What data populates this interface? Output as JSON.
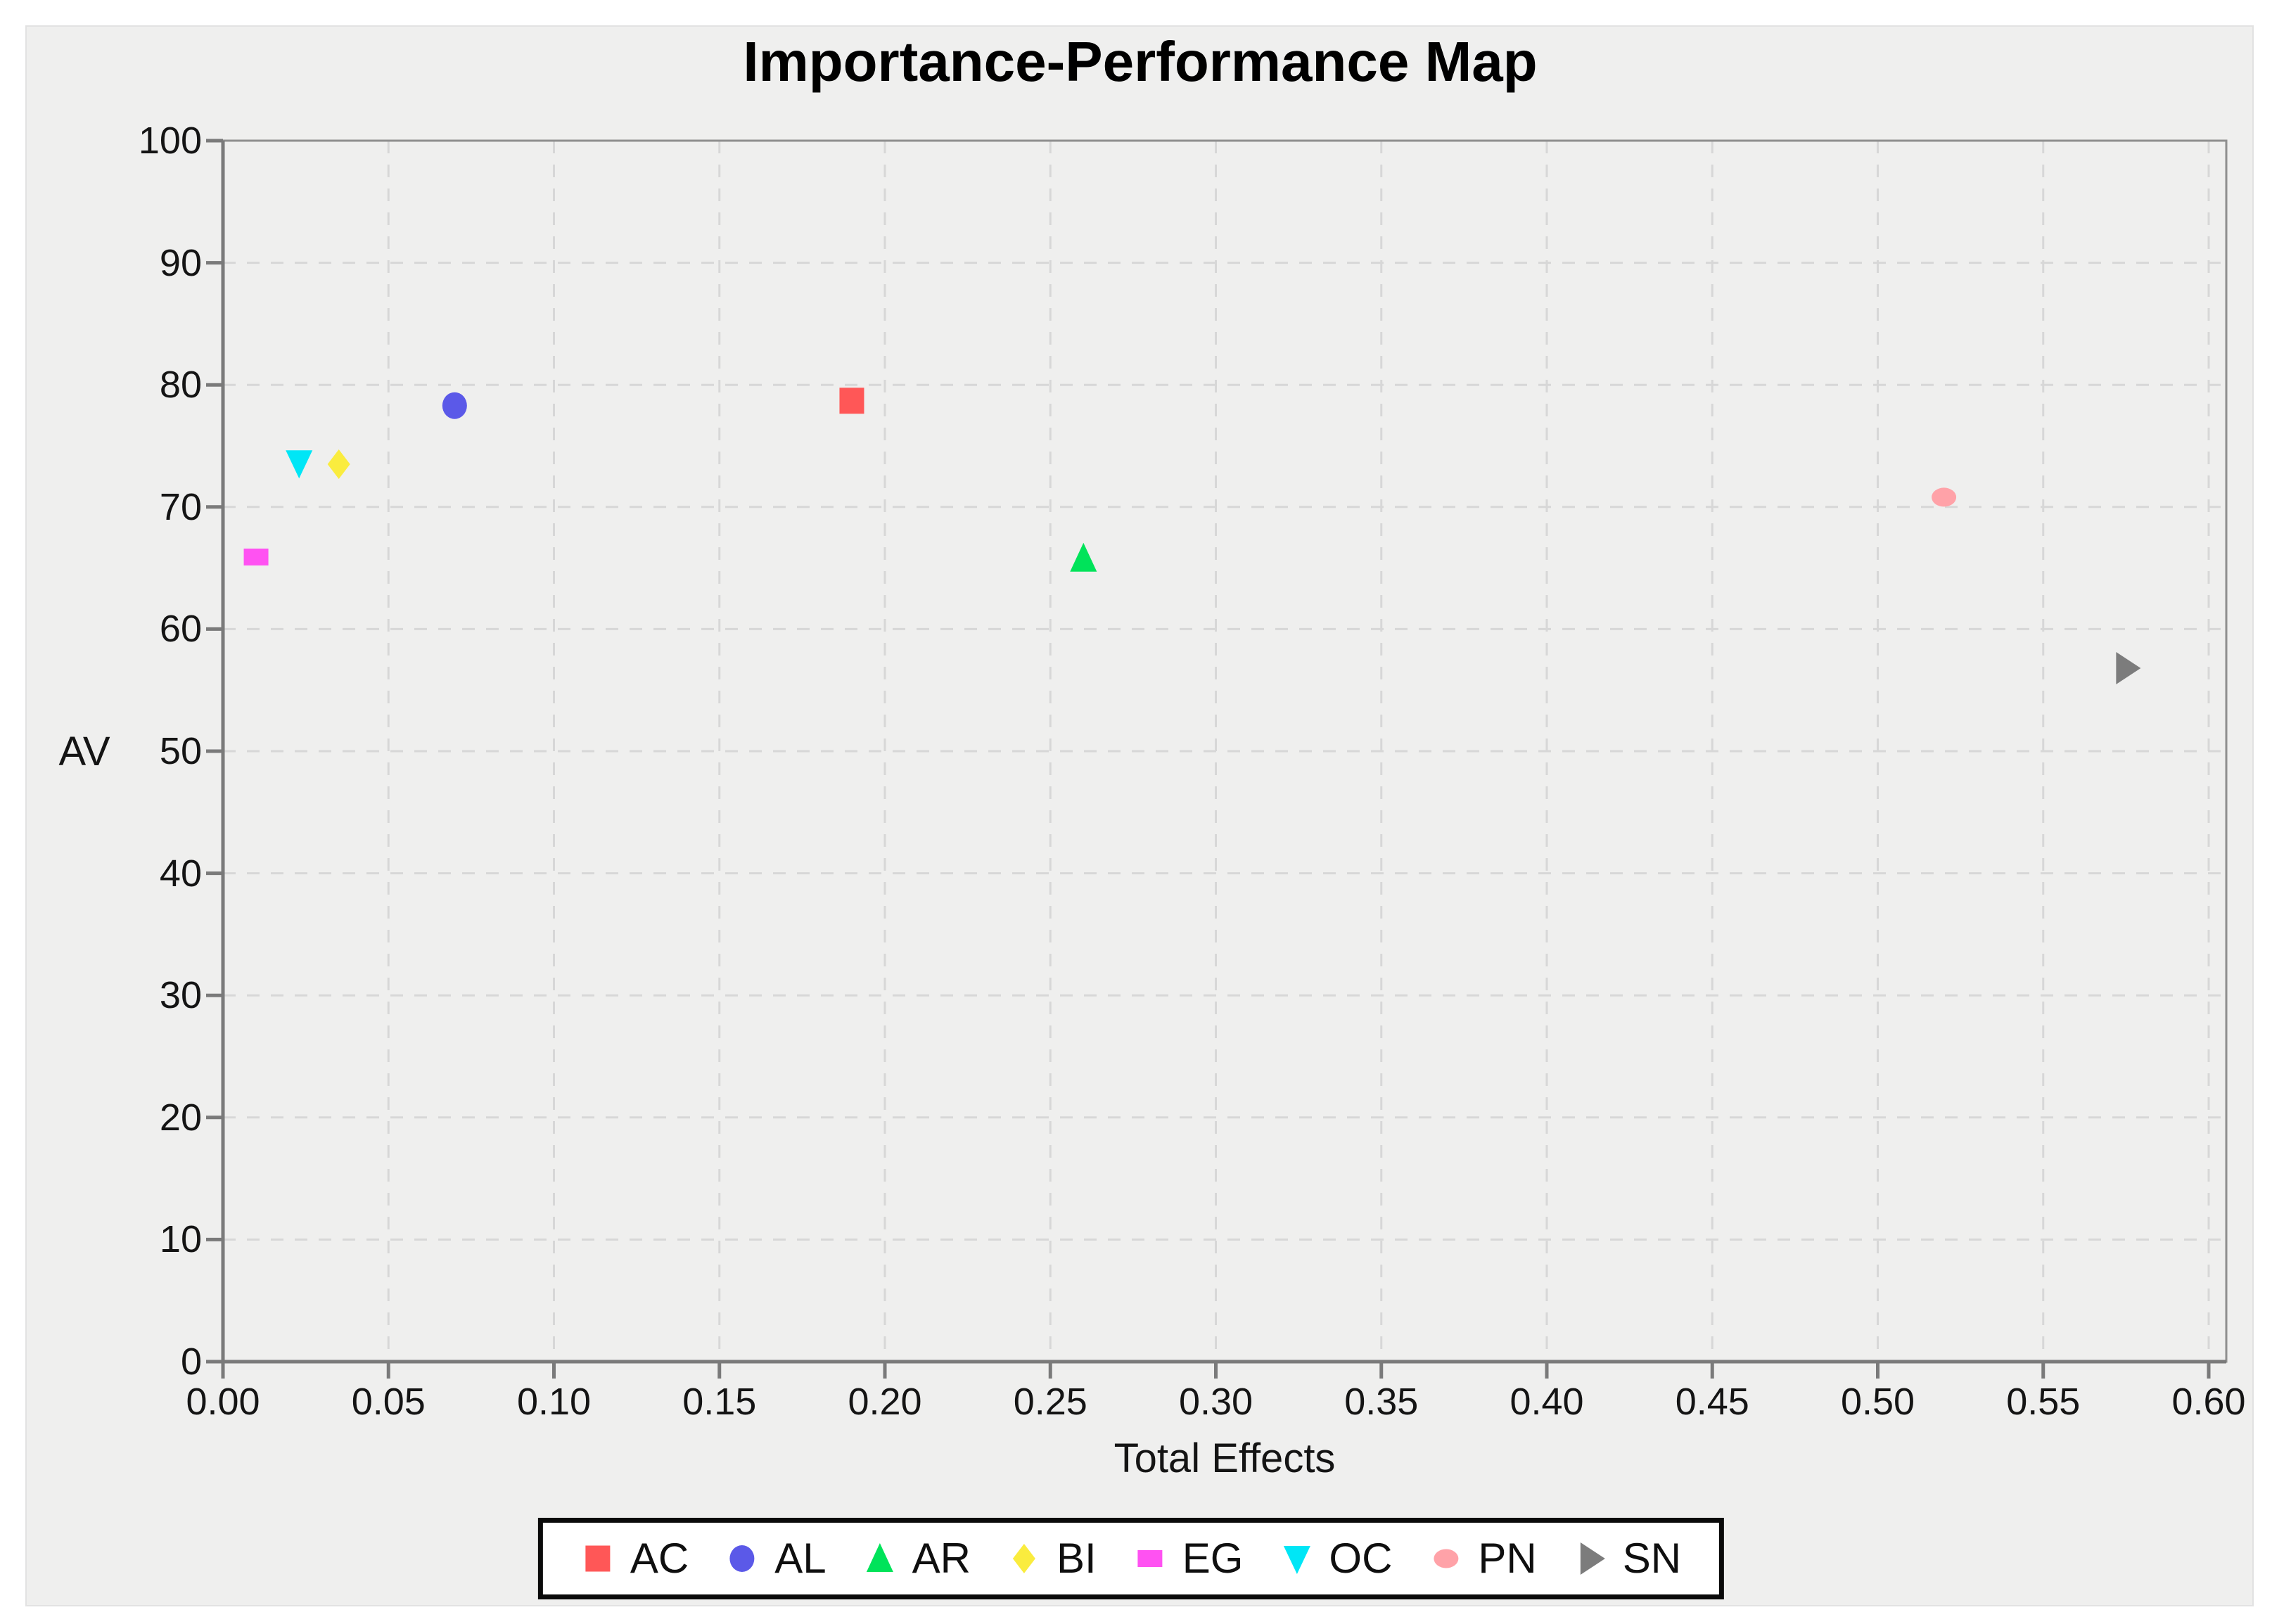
{
  "title": "Importance-Performance Map",
  "panel": {
    "background": "#efefee",
    "plot_background": "#ffffff"
  },
  "colors": {
    "grid": "#d7d7d7",
    "frame": "#8f8f8f",
    "axis": "#7a7a7a",
    "tick_text": "#141414",
    "legend_border": "#0a0a0a"
  },
  "chart_data": {
    "type": "scatter",
    "title": "Importance-Performance Map",
    "xlabel": "Total Effects",
    "ylabel": "AV",
    "xlim": [
      0.0,
      0.6
    ],
    "ylim": [
      0,
      100
    ],
    "grid": "dashed",
    "legend_position": "bottom-center",
    "x_ticks": [
      {
        "value": 0.0,
        "label": "0.00"
      },
      {
        "value": 0.05,
        "label": "0.05"
      },
      {
        "value": 0.1,
        "label": "0.10"
      },
      {
        "value": 0.15,
        "label": "0.15"
      },
      {
        "value": 0.2,
        "label": "0.20"
      },
      {
        "value": 0.25,
        "label": "0.25"
      },
      {
        "value": 0.3,
        "label": "0.30"
      },
      {
        "value": 0.35,
        "label": "0.35"
      },
      {
        "value": 0.4,
        "label": "0.40"
      },
      {
        "value": 0.45,
        "label": "0.45"
      },
      {
        "value": 0.5,
        "label": "0.50"
      },
      {
        "value": 0.55,
        "label": "0.55"
      },
      {
        "value": 0.6,
        "label": "0.60"
      }
    ],
    "y_ticks": [
      {
        "value": 0,
        "label": "0"
      },
      {
        "value": 10,
        "label": "10"
      },
      {
        "value": 20,
        "label": "20"
      },
      {
        "value": 30,
        "label": "30"
      },
      {
        "value": 40,
        "label": "40"
      },
      {
        "value": 50,
        "label": "50"
      },
      {
        "value": 60,
        "label": "60"
      },
      {
        "value": 70,
        "label": "70"
      },
      {
        "value": 80,
        "label": "80"
      },
      {
        "value": 90,
        "label": "90"
      },
      {
        "value": 100,
        "label": "100"
      }
    ],
    "series": [
      {
        "name": "AC",
        "marker": "square",
        "color": "#FF5757",
        "x": 0.19,
        "y": 78.7
      },
      {
        "name": "AL",
        "marker": "circle",
        "color": "#5B59E8",
        "x": 0.07,
        "y": 78.3
      },
      {
        "name": "AR",
        "marker": "triangle-up",
        "color": "#00E35A",
        "x": 0.26,
        "y": 65.8
      },
      {
        "name": "BI",
        "marker": "diamond",
        "color": "#FAEC3E",
        "x": 0.035,
        "y": 73.5
      },
      {
        "name": "EG",
        "marker": "square-small",
        "color": "#FF52F2",
        "x": 0.01,
        "y": 65.9
      },
      {
        "name": "OC",
        "marker": "triangle-down",
        "color": "#00E6F6",
        "x": 0.023,
        "y": 73.6
      },
      {
        "name": "PN",
        "marker": "circle-small",
        "color": "#FFA2A8",
        "x": 0.52,
        "y": 70.8
      },
      {
        "name": "SN",
        "marker": "triangle-right",
        "color": "#7C7C7C",
        "x": 0.575,
        "y": 56.8
      }
    ]
  }
}
